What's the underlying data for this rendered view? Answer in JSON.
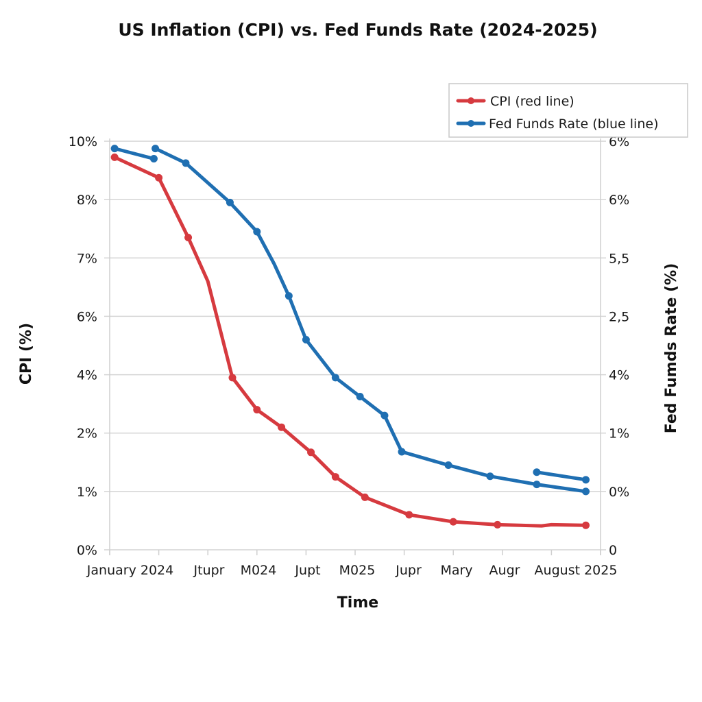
{
  "chart_data": {
    "type": "line",
    "title": "US Inflation (CPI) vs. Fed Funds Rate (2024-2025)",
    "xlabel": "Time",
    "ylabel": "CPI (%)",
    "y2label": "Fed Fumds Rate (%)",
    "grid": true,
    "legend_position": "top-right",
    "x_tick_labels": [
      "January 2024",
      "Jtupr",
      "M024",
      "Jupt",
      "M025",
      "Jupr",
      "Mary",
      "Augr",
      "August 2025"
    ],
    "y_tick_labels": [
      "0%",
      "1%",
      "2%",
      "4%",
      "6%",
      "7%",
      "8%",
      "10%"
    ],
    "y2_tick_labels": [
      "0",
      "0%",
      "1%",
      "4%",
      "2,5",
      "5,5",
      "6%",
      "6%"
    ],
    "y_scale_note": "Gridlines are evenly spaced; labels are irregular. Values below are read in left-axis (CPI) label units, interpolated between neighbouring labels.",
    "series": [
      {
        "name": "CPI (red line)",
        "color": "#d63a3f",
        "segments": [
          {
            "points": [
              {
                "x": "January 2024",
                "xi": 0.1,
                "y": 9.45,
                "marker": true
              },
              {
                "x": "",
                "xi": 1.0,
                "y": 8.75,
                "marker": true
              },
              {
                "x": "",
                "xi": 1.6,
                "y": 7.35,
                "marker": true
              },
              {
                "x": "",
                "xi": 2.0,
                "y": 6.6,
                "marker": false
              },
              {
                "x": "",
                "xi": 2.5,
                "y": 3.9,
                "marker": true
              },
              {
                "x": "",
                "xi": 3.0,
                "y": 2.8,
                "marker": true
              },
              {
                "x": "",
                "xi": 3.5,
                "y": 2.2,
                "marker": true
              },
              {
                "x": "",
                "xi": 4.1,
                "y": 1.67,
                "marker": true
              },
              {
                "x": "",
                "xi": 4.6,
                "y": 1.25,
                "marker": true
              },
              {
                "x": "",
                "xi": 5.2,
                "y": 0.9,
                "marker": true
              },
              {
                "x": "",
                "xi": 6.1,
                "y": 0.6,
                "marker": true
              },
              {
                "x": "",
                "xi": 7.0,
                "y": 0.48,
                "marker": true
              },
              {
                "x": "",
                "xi": 7.9,
                "y": 0.43,
                "marker": true
              },
              {
                "x": "",
                "xi": 8.8,
                "y": 0.41,
                "marker": false
              },
              {
                "x": "",
                "xi": 9.0,
                "y": 0.43,
                "marker": false
              },
              {
                "x": "August 2025",
                "xi": 9.7,
                "y": 0.42,
                "marker": true
              }
            ]
          }
        ]
      },
      {
        "name": "Fed Funds Rate (blue line)",
        "color": "#1f6fb2",
        "segments": [
          {
            "points": [
              {
                "x": "January 2024",
                "xi": 0.1,
                "y": 9.75,
                "marker": true
              },
              {
                "x": "",
                "xi": 0.9,
                "y": 9.4,
                "marker": true
              }
            ]
          },
          {
            "points": [
              {
                "x": "",
                "xi": 0.93,
                "y": 9.75,
                "marker": true
              },
              {
                "x": "",
                "xi": 1.55,
                "y": 9.25,
                "marker": true
              },
              {
                "x": "",
                "xi": 2.45,
                "y": 7.95,
                "marker": true
              },
              {
                "x": "",
                "xi": 3.0,
                "y": 7.45,
                "marker": true
              },
              {
                "x": "",
                "xi": 3.35,
                "y": 6.9,
                "marker": false
              },
              {
                "x": "",
                "xi": 3.65,
                "y": 6.35,
                "marker": true
              },
              {
                "x": "",
                "xi": 4.0,
                "y": 5.2,
                "marker": true
              },
              {
                "x": "",
                "xi": 4.6,
                "y": 3.9,
                "marker": true
              },
              {
                "x": "",
                "xi": 5.1,
                "y": 3.25,
                "marker": true
              },
              {
                "x": "",
                "xi": 5.6,
                "y": 2.6,
                "marker": true
              },
              {
                "x": "",
                "xi": 5.95,
                "y": 1.68,
                "marker": true
              },
              {
                "x": "",
                "xi": 6.9,
                "y": 1.45,
                "marker": true
              },
              {
                "x": "",
                "xi": 7.75,
                "y": 1.26,
                "marker": true
              },
              {
                "x": "",
                "xi": 8.7,
                "y": 1.12,
                "marker": true
              },
              {
                "x": "August 2025",
                "xi": 9.7,
                "y": 1.0,
                "marker": true
              }
            ]
          },
          {
            "points": [
              {
                "x": "",
                "xi": 8.7,
                "y": 1.33,
                "marker": true
              },
              {
                "x": "August 2025",
                "xi": 9.7,
                "y": 1.2,
                "marker": true
              }
            ]
          }
        ]
      }
    ],
    "legend": [
      {
        "label": "CPI (red line)",
        "color": "#d63a3f"
      },
      {
        "label": "Fed Funds Rate (blue line)",
        "color": "#1f6fb2"
      }
    ]
  }
}
